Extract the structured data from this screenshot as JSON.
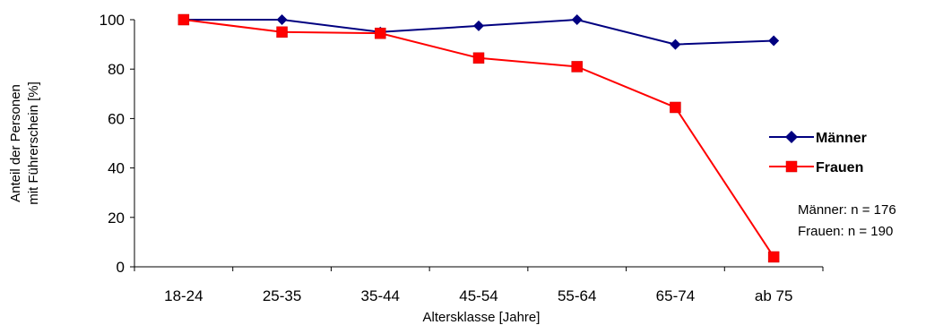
{
  "chart_data": {
    "type": "line",
    "categories": [
      "18-24",
      "25-35",
      "35-44",
      "45-54",
      "55-64",
      "65-74",
      "ab 75"
    ],
    "series": [
      {
        "name": "Männer",
        "values": [
          100,
          100,
          95,
          97.5,
          100,
          90,
          91.5
        ],
        "color": "#000080",
        "marker": "diamond"
      },
      {
        "name": "Frauen",
        "values": [
          100,
          95,
          94.5,
          84.5,
          81,
          64.5,
          4
        ],
        "color": "#ff0000",
        "marker": "square"
      }
    ],
    "xlabel": "Altersklasse [Jahre]",
    "ylabel_lines": [
      "Anteil der Personen",
      "mit Führerschein [%]"
    ],
    "ylim": [
      0,
      100
    ],
    "yticks": [
      0,
      20,
      40,
      60,
      80,
      100
    ],
    "grid": false,
    "legend_position": "right",
    "annotations": [
      "Männer: n = 176",
      "Frauen: n = 190"
    ]
  }
}
